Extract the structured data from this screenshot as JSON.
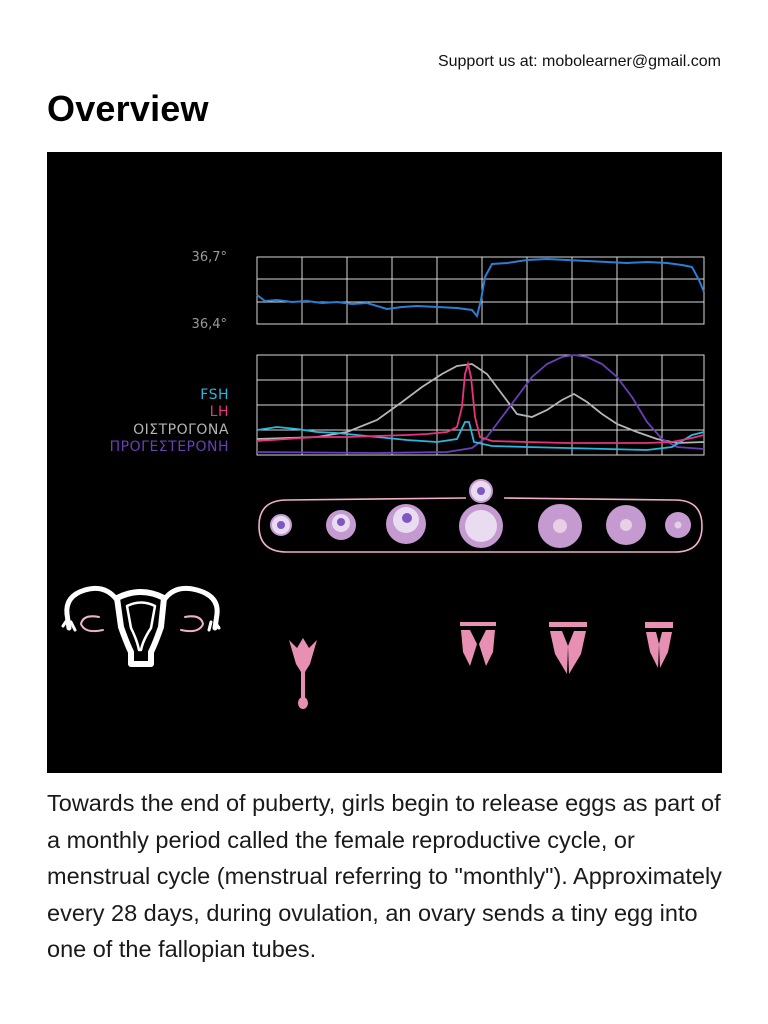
{
  "header": {
    "support_text": "Support us at: mobolearner@gmail.com"
  },
  "page_title": "Overview",
  "figure": {
    "temperature_ticks": [
      "36,7°",
      "36,4°"
    ],
    "legend": [
      {
        "label": "FSH",
        "color": "#29b6e0"
      },
      {
        "label": "LH",
        "color": "#e8337f"
      },
      {
        "label": "ΟΙΣΤΡΟΓΟΝΑ",
        "color": "#b5b5b5"
      },
      {
        "label": "ΠΡΟΓΕΣΤΕΡΟΝΗ",
        "color": "#6a3fb8"
      }
    ],
    "colors": {
      "background": "#000000",
      "grid": "#d9d9d9",
      "temperature_line": "#2a7fd4",
      "follicle_fill": "#c59ad0",
      "ovary_outline": "#f0b0c8",
      "endometrium": "#e890b4",
      "uterus_outline": "#ffffff"
    },
    "icons": [
      "uterus-icon",
      "follicle-icon",
      "endometrium-icon"
    ]
  },
  "body_text": "Towards the end of puberty, girls begin to release eggs as part of a monthly period called the female reproductive cycle, or menstrual cycle (menstrual referring to \"monthly\"). Approximately every 28 days, during ovulation, an ovary sends a tiny egg into one of the fallopian tubes."
}
